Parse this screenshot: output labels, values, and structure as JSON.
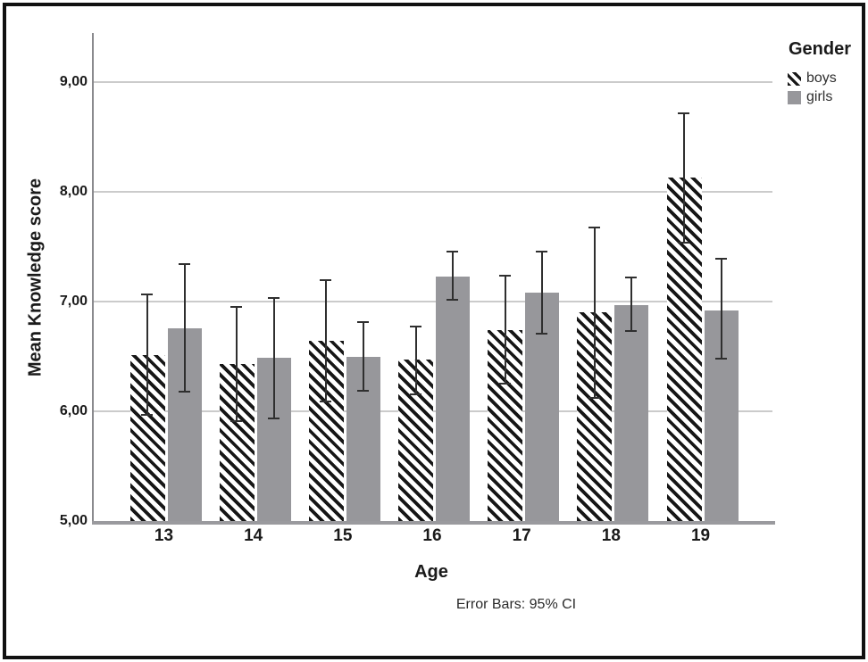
{
  "figure": {
    "caption": "Error Bars: 95% CI",
    "legend": {
      "title": "Gender",
      "items": [
        {
          "label": "boys",
          "swatch": "hatch",
          "icon": "diagonal-hatch-swatch"
        },
        {
          "label": "girls",
          "swatch": "solid",
          "icon": "gray-square-swatch"
        }
      ]
    }
  },
  "colors": {
    "girls_bar": "#97979b",
    "hatch_stroke": "#161616",
    "gridline": "#cbcbcb",
    "axis_line": "#8a8a8e",
    "baseline": "#9a9a9e",
    "error_bar": "#2f2f2f",
    "frame": "#111111",
    "text": "#1a1a1a"
  },
  "chart_data": {
    "type": "bar",
    "title": "",
    "xlabel": "Age",
    "ylabel": "Mean Knowledge score",
    "categories": [
      "13",
      "14",
      "15",
      "16",
      "17",
      "18",
      "19"
    ],
    "yticks": [
      {
        "label": "5,00",
        "value": 5
      },
      {
        "label": "6,00",
        "value": 6
      },
      {
        "label": "7,00",
        "value": 7
      },
      {
        "label": "8,00",
        "value": 8
      },
      {
        "label": "9,00",
        "value": 9
      }
    ],
    "ylim": [
      5.0,
      9.45
    ],
    "grid": true,
    "legend_position": "top-right",
    "error_bars": "95% CI",
    "series": [
      {
        "name": "boys",
        "style": "hatched",
        "values": [
          6.51,
          6.43,
          6.64,
          6.47,
          6.74,
          6.9,
          8.13
        ],
        "ci_low": [
          5.96,
          5.9,
          6.08,
          6.15,
          6.24,
          6.11,
          7.53
        ],
        "ci_high": [
          7.07,
          6.96,
          7.2,
          6.78,
          7.24,
          7.68,
          8.72
        ]
      },
      {
        "name": "girls",
        "style": "solid",
        "color": "#97979b",
        "values": [
          6.76,
          6.49,
          6.5,
          7.23,
          7.08,
          6.97,
          6.92
        ],
        "ci_low": [
          6.17,
          5.93,
          6.18,
          7.01,
          6.7,
          6.72,
          6.47
        ],
        "ci_high": [
          7.35,
          7.04,
          6.82,
          7.46,
          7.46,
          7.23,
          7.4
        ]
      }
    ]
  }
}
